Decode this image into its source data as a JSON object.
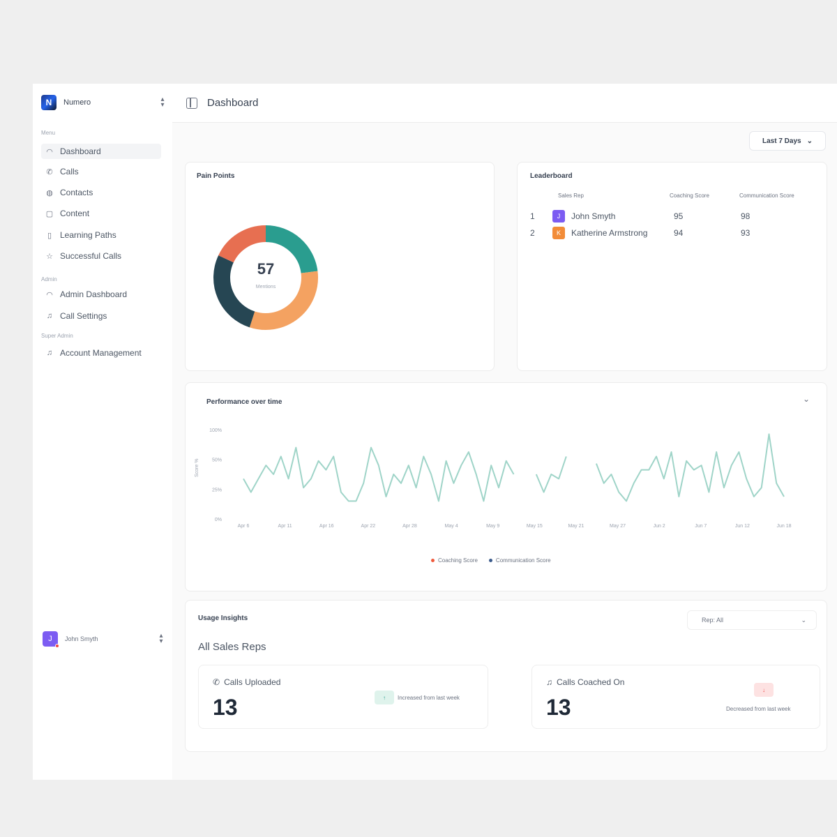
{
  "org": {
    "name": "Numero"
  },
  "sidebar": {
    "menu_label": "Menu",
    "items": [
      {
        "label": "Dashboard",
        "icon": "gauge-icon",
        "active": true
      },
      {
        "label": "Calls",
        "icon": "phone-icon"
      },
      {
        "label": "Contacts",
        "icon": "globe-icon"
      },
      {
        "label": "Content",
        "icon": "clipboard-icon"
      },
      {
        "label": "Learning Paths",
        "icon": "book-icon"
      },
      {
        "label": "Successful Calls",
        "icon": "star-icon"
      }
    ],
    "admin_label": "Admin",
    "admin_items": [
      {
        "label": "Admin Dashboard",
        "icon": "gauge-icon"
      },
      {
        "label": "Call Settings",
        "icon": "headset-icon"
      }
    ],
    "super_admin_label": "Super Admin",
    "super_items": [
      {
        "label": "Account Management",
        "icon": "headset-icon"
      }
    ],
    "user": {
      "name": "John Smyth",
      "initial": "J"
    }
  },
  "header": {
    "title": "Dashboard"
  },
  "date_range": {
    "value": "Last 7 Days"
  },
  "pain_points": {
    "title": "Pain Points",
    "center_value": "57",
    "center_label": "Mentions",
    "segments": [
      {
        "value": 23,
        "color": "#2a9d8f"
      },
      {
        "value": 32,
        "color": "#f4a261"
      },
      {
        "value": 27,
        "color": "#264653"
      },
      {
        "value": 18,
        "color": "#e76f51"
      }
    ]
  },
  "leaderboard": {
    "title": "Leaderboard",
    "columns": [
      "Sales Rep",
      "Coaching Score",
      "Communication Score"
    ],
    "rows": [
      {
        "rank": "1",
        "initial": "J",
        "name": "John Smyth",
        "coaching": "95",
        "communication": "98",
        "color": "#7c5cf2"
      },
      {
        "rank": "2",
        "initial": "K",
        "name": "Katherine Armstrong",
        "coaching": "94",
        "communication": "93",
        "color": "#f28c38"
      }
    ]
  },
  "performance": {
    "title": "Performance over time",
    "legend": [
      {
        "label": "Coaching Score",
        "color": "#ef5a3c"
      },
      {
        "label": "Communication Score",
        "color": "#3b5b8c"
      }
    ]
  },
  "chart_data": {
    "type": "line",
    "title": "Performance over time",
    "ylabel": "Score %",
    "yticks": [
      "100%",
      "50%",
      "25%",
      "0%"
    ],
    "xticks": [
      "Apr 6",
      "Apr 11",
      "Apr 16",
      "Apr 22",
      "Apr 28",
      "May 4",
      "May 9",
      "May 15",
      "May 21",
      "May 27",
      "Jun 2",
      "Jun 7",
      "Jun 12",
      "Jun 18"
    ],
    "series": [
      {
        "name": "Communication Score",
        "color": "#9fd4c8",
        "values": [
          45,
          30,
          45,
          60,
          50,
          70,
          45,
          80,
          35,
          45,
          65,
          55,
          70,
          30,
          20,
          20,
          40,
          80,
          60,
          25,
          50,
          40,
          60,
          35,
          70,
          50,
          20,
          65,
          40,
          60,
          75,
          50,
          20,
          60,
          35,
          65,
          50,
          null,
          null,
          50,
          30,
          50,
          45,
          70,
          null,
          null,
          null,
          62,
          40,
          50,
          30,
          20,
          40,
          55,
          55,
          70,
          45,
          75,
          25,
          65,
          55,
          60,
          30,
          75,
          35,
          60,
          75,
          45,
          25,
          35,
          95,
          40,
          25
        ]
      }
    ]
  },
  "usage": {
    "title": "Usage Insights",
    "subtitle": "All Sales Reps",
    "rep_filter": "Rep: All",
    "stats": [
      {
        "label": "Calls Uploaded",
        "value": "13",
        "badge": "↑",
        "note": "Increased from last week",
        "badge_bg": "#dff3ec",
        "badge_fg": "#2a9d8f",
        "icon": "phone-incoming-icon"
      },
      {
        "label": "Calls Coached On",
        "value": "13",
        "badge": "↓",
        "note": "Decreased from last week",
        "badge_bg": "#fde2e2",
        "badge_fg": "#ef4444",
        "icon": "headset-icon"
      }
    ]
  }
}
